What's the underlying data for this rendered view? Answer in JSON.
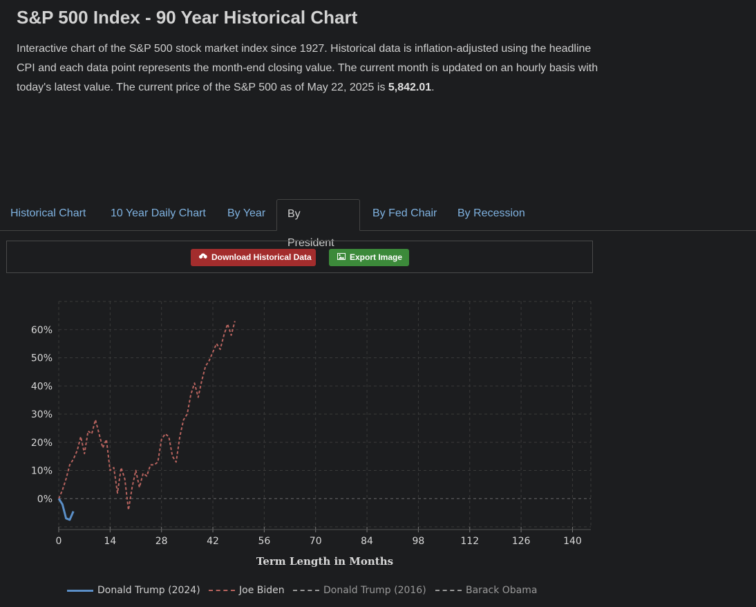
{
  "page": {
    "title": "S&P 500 Index - 90 Year Historical Chart",
    "desc_pre": "Interactive chart of the S&P 500 stock market index since 1927. Historical data is inflation-adjusted using the headline CPI and each data point represents the month-end closing value. The current month is updated on an hourly basis with today's latest value. The current price of the S&P 500 as of May 22, 2025 is ",
    "desc_price": "5,842.01",
    "desc_post": "."
  },
  "tabs": [
    {
      "label": "Historical Chart",
      "active": false
    },
    {
      "label": "10 Year Daily Chart",
      "active": false
    },
    {
      "label": "By Year",
      "active": false
    },
    {
      "label": "By President",
      "active": true
    },
    {
      "label": "By Fed Chair",
      "active": false
    },
    {
      "label": "By Recession",
      "active": false
    }
  ],
  "toolbar": {
    "download_label": "Download Historical Data",
    "export_label": "Export Image",
    "download_icon": "cloud-download-icon",
    "export_icon": "image-icon",
    "download_color": "#a32d2d",
    "export_color": "#3c8a3a"
  },
  "chart_data": {
    "type": "line",
    "xlabel": "Term Length in Months",
    "ylabel": "",
    "x_ticks": [
      0,
      14,
      28,
      42,
      56,
      70,
      84,
      98,
      112,
      126,
      140
    ],
    "y_ticks": [
      0,
      10,
      20,
      30,
      40,
      50,
      60
    ],
    "y_tick_labels": [
      "0%",
      "10%",
      "20%",
      "30%",
      "40%",
      "50%",
      "60%"
    ],
    "xlim": [
      0,
      145
    ],
    "ylim": [
      -10,
      70
    ],
    "grid": true,
    "legend_position": "bottom",
    "series": [
      {
        "name": "Donald Trump (2024)",
        "color": "#5b8fc7",
        "dash": "solid",
        "x": [
          0,
          1,
          2,
          3,
          4
        ],
        "y": [
          0,
          -2,
          -7,
          -7.5,
          -4.5
        ]
      },
      {
        "name": "Joe Biden",
        "color": "#b9645f",
        "dash": "dashed",
        "x": [
          0,
          1,
          2,
          3,
          4,
          5,
          6,
          7,
          8,
          9,
          10,
          11,
          12,
          13,
          14,
          15,
          16,
          17,
          18,
          19,
          20,
          21,
          22,
          23,
          24,
          25,
          26,
          27,
          28,
          29,
          30,
          31,
          32,
          33,
          34,
          35,
          36,
          37,
          38,
          39,
          40,
          41,
          42,
          43,
          44,
          45,
          46,
          47,
          48
        ],
        "y": [
          0,
          3,
          7,
          12,
          14,
          17,
          22,
          16,
          24,
          23,
          28,
          23,
          18,
          21,
          10,
          11,
          2,
          11,
          7,
          -4,
          4,
          10,
          4,
          9,
          8,
          12,
          12,
          13,
          21,
          23,
          22,
          15,
          13,
          22,
          28,
          30,
          37,
          41,
          36,
          42,
          47,
          49,
          52,
          55,
          53,
          58,
          62,
          58,
          63
        ]
      },
      {
        "name": "Donald Trump (2016)",
        "color": "#9a9a9a",
        "dash": "dashed",
        "hidden": true,
        "x": [],
        "y": []
      },
      {
        "name": "Barack Obama",
        "color": "#9a9a9a",
        "dash": "dashed",
        "hidden": true,
        "x": [],
        "y": []
      }
    ]
  }
}
